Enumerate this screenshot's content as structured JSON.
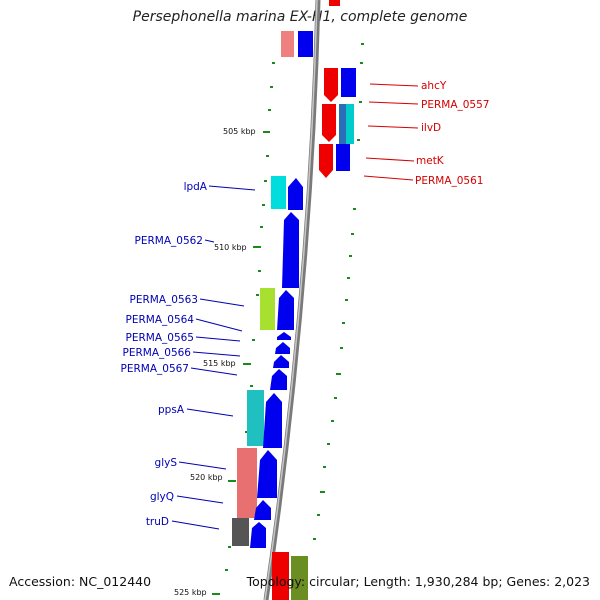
{
  "title": "Persephonella marina EX-H1, complete genome",
  "accession": "Accession: NC_012440",
  "stats": "Topology: circular; Length: 1,930,284 bp; Genes: 2,023",
  "colors": {
    "reverse_strand_label": "#d40000",
    "forward_strand_label": "#0000b4",
    "backbone": "#8a8a8a",
    "tick": "#1a8a1a"
  },
  "scale_ticks": [
    "505 kbp",
    "510 kbp",
    "515 kbp",
    "520 kbp",
    "525 kbp"
  ],
  "gene_labels_right": [
    "ahcY",
    "PERMA_0557",
    "ilvD",
    "metK",
    "PERMA_0561"
  ],
  "gene_labels_left": [
    "lpdA",
    "PERMA_0562",
    "PERMA_0563",
    "PERMA_0564",
    "PERMA_0565",
    "PERMA_0566",
    "PERMA_0567",
    "ppsA",
    "glyS",
    "glyQ",
    "truD"
  ]
}
